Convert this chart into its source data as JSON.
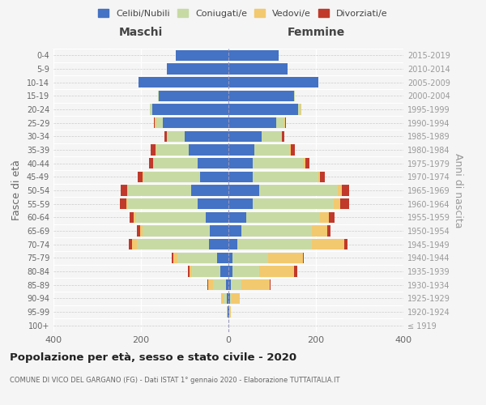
{
  "age_groups": [
    "100+",
    "95-99",
    "90-94",
    "85-89",
    "80-84",
    "75-79",
    "70-74",
    "65-69",
    "60-64",
    "55-59",
    "50-54",
    "45-49",
    "40-44",
    "35-39",
    "30-34",
    "25-29",
    "20-24",
    "15-19",
    "10-14",
    "5-9",
    "0-4"
  ],
  "birth_years": [
    "≤ 1919",
    "1920-1924",
    "1925-1929",
    "1930-1934",
    "1935-1939",
    "1940-1944",
    "1945-1949",
    "1950-1954",
    "1955-1959",
    "1960-1964",
    "1965-1969",
    "1970-1974",
    "1975-1979",
    "1980-1984",
    "1985-1989",
    "1990-1994",
    "1995-1999",
    "2000-2004",
    "2005-2009",
    "2010-2014",
    "2015-2019"
  ],
  "maschi": {
    "celibi": [
      0,
      1,
      4,
      6,
      18,
      26,
      45,
      42,
      52,
      70,
      85,
      65,
      70,
      90,
      100,
      150,
      175,
      160,
      205,
      140,
      120
    ],
    "coniugati": [
      0,
      2,
      8,
      30,
      65,
      90,
      165,
      155,
      160,
      160,
      145,
      130,
      100,
      75,
      40,
      15,
      5,
      2,
      0,
      0,
      0
    ],
    "vedovi": [
      0,
      0,
      5,
      10,
      5,
      10,
      10,
      5,
      4,
      3,
      2,
      2,
      2,
      2,
      1,
      3,
      0,
      0,
      0,
      0,
      0
    ],
    "divorziati": [
      0,
      0,
      0,
      2,
      5,
      3,
      8,
      8,
      10,
      15,
      15,
      10,
      10,
      10,
      5,
      3,
      0,
      0,
      0,
      0,
      0
    ]
  },
  "femmine": {
    "nubili": [
      0,
      1,
      3,
      5,
      10,
      10,
      20,
      30,
      40,
      55,
      70,
      55,
      55,
      60,
      75,
      110,
      160,
      150,
      205,
      135,
      115
    ],
    "coniugate": [
      0,
      2,
      5,
      25,
      60,
      80,
      170,
      160,
      170,
      185,
      180,
      150,
      115,
      80,
      45,
      18,
      5,
      2,
      0,
      0,
      0
    ],
    "vedove": [
      0,
      3,
      18,
      65,
      80,
      80,
      75,
      35,
      20,
      15,
      10,
      5,
      5,
      3,
      2,
      1,
      1,
      0,
      0,
      0,
      0
    ],
    "divorziate": [
      0,
      0,
      0,
      2,
      8,
      3,
      8,
      8,
      12,
      20,
      15,
      10,
      10,
      8,
      5,
      2,
      0,
      0,
      0,
      0,
      0
    ]
  },
  "colors": {
    "celibi": "#4472c4",
    "coniugati": "#c8daa4",
    "vedovi": "#f2c96e",
    "divorziati": "#c0392b"
  },
  "xlim": 400,
  "title": "Popolazione per età, sesso e stato civile - 2020",
  "subtitle": "COMUNE DI VICO DEL GARGANO (FG) - Dati ISTAT 1° gennaio 2020 - Elaborazione TUTTAITALIA.IT",
  "ylabel_left": "Fasce di età",
  "ylabel_right": "Anni di nascita",
  "label_maschi": "Maschi",
  "label_femmine": "Femmine",
  "legend_labels": [
    "Celibi/Nubili",
    "Coniugati/e",
    "Vedovi/e",
    "Divorziati/e"
  ],
  "bg_color": "#f5f5f5",
  "bar_height": 0.8
}
